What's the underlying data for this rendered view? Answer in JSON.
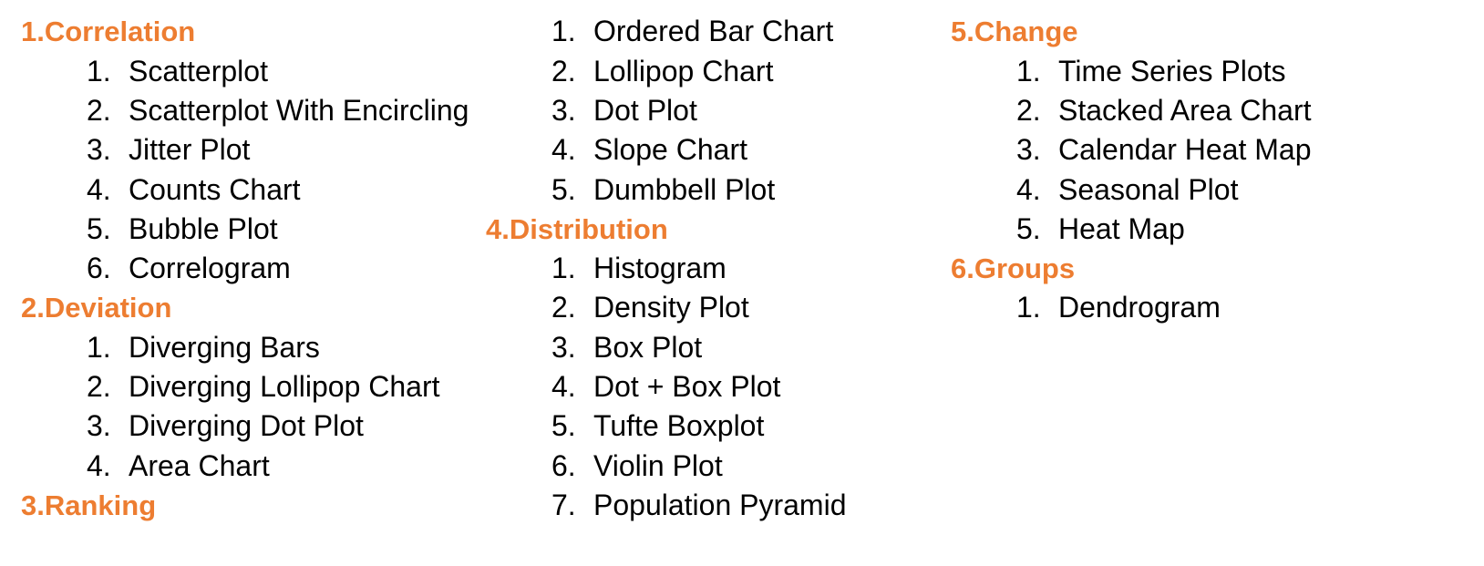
{
  "sections": {
    "correlation": {
      "title": "1.Correlation",
      "items": [
        "Scatterplot",
        "Scatterplot With Encircling",
        "Jitter Plot",
        "Counts Chart",
        "Bubble Plot",
        "Correlogram"
      ]
    },
    "deviation": {
      "title": "2.Deviation",
      "items": [
        "Diverging Bars",
        "Diverging Lollipop Chart",
        "Diverging Dot Plot",
        "Area Chart"
      ]
    },
    "ranking": {
      "title": "3.Ranking",
      "items": [
        "Ordered Bar Chart",
        "Lollipop Chart",
        "Dot Plot",
        "Slope Chart",
        "Dumbbell Plot"
      ]
    },
    "distribution": {
      "title": "4.Distribution",
      "items": [
        "Histogram",
        "Density Plot",
        "Box Plot",
        "Dot + Box Plot",
        "Tufte Boxplot",
        "Violin Plot",
        "Population Pyramid"
      ]
    },
    "change": {
      "title": "5.Change",
      "items": [
        "Time Series Plots",
        "Stacked Area Chart",
        "Calendar Heat Map",
        "Seasonal Plot",
        "Heat Map"
      ]
    },
    "groups": {
      "title": "6.Groups",
      "items": [
        "Dendrogram"
      ]
    }
  },
  "numbers": [
    "1.",
    "2.",
    "3.",
    "4.",
    "5.",
    "6.",
    "7."
  ],
  "colors": {
    "heading": "#ED7D31",
    "text": "#000000"
  }
}
